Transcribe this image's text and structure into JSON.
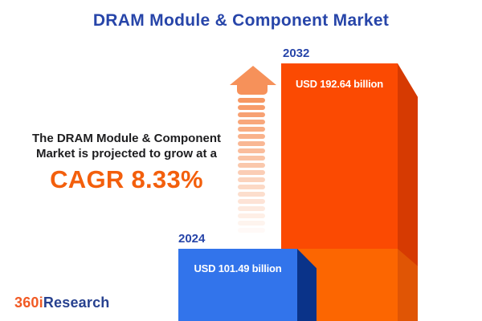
{
  "title": "DRAM Module & Component Market",
  "annotation": {
    "line1": "The DRAM Module & Component",
    "line2": "Market is projected to grow at a",
    "cagr": "CAGR 8.33%"
  },
  "bars": [
    {
      "year": "2024",
      "value_label": "USD 101.49 billion"
    },
    {
      "year": "2032",
      "value_label": "USD 192.64 billion"
    }
  ],
  "logo": {
    "part1": "360i",
    "part2": "Research"
  },
  "colors": {
    "background": "#FFFFFF",
    "title-blue": "#2745A9",
    "year-blue": "#2745A9",
    "bar-blue": "#3274EB",
    "bar-blue-side": "#0A3389",
    "bar-orange": "#FB4A02",
    "bar-orange-side": "#D63A02",
    "bar-orange-light": "#FC6601",
    "bar-orange-light-side": "#E05505",
    "arrow-orange": "#F6915A",
    "cagr-orange": "#F35F0C",
    "logo-orange": "#F15A24",
    "logo-blue": "#27418F",
    "text-dark": "#1D1D1F",
    "value-text": "#FFFFFF"
  },
  "chart_data": {
    "type": "bar",
    "title": "DRAM Module & Component Market",
    "categories": [
      "2024",
      "2032"
    ],
    "values": [
      101.49,
      192.64
    ],
    "unit": "USD billion",
    "value_labels": [
      "USD 101.49 billion",
      "USD 192.64 billion"
    ],
    "cagr_percent": 8.33,
    "annotation": "The DRAM Module & Component Market is projected to grow at a CAGR 8.33%",
    "bar_colors": [
      "#3274EB",
      "#FB4A02"
    ],
    "axes": "none",
    "legend": "none",
    "grid": false,
    "source_logo": "360iResearch"
  }
}
